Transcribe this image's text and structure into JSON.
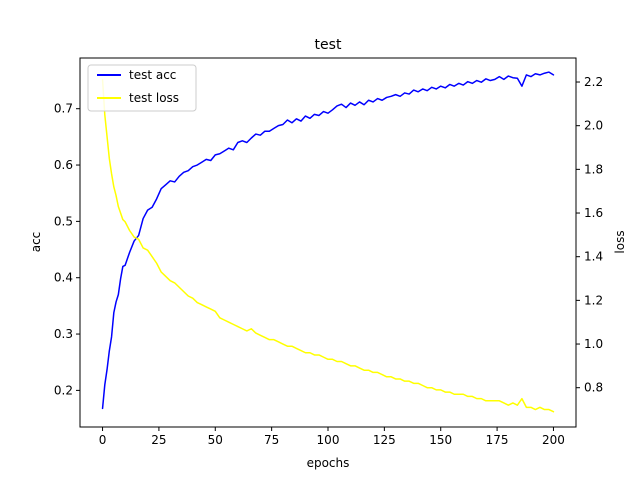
{
  "chart_data": {
    "type": "line",
    "title": "test",
    "xlabel": "epochs",
    "ylabel_left": "acc",
    "ylabel_right": "loss",
    "xlim": [
      -10,
      210
    ],
    "ylim_left": [
      0.135,
      0.79
    ],
    "ylim_right": [
      0.62,
      2.31
    ],
    "x_ticks": [
      0,
      25,
      50,
      75,
      100,
      125,
      150,
      175,
      200
    ],
    "y_ticks_left": [
      0.2,
      0.3,
      0.4,
      0.5,
      0.6,
      0.7
    ],
    "y_ticks_right": [
      0.8,
      1.0,
      1.2,
      1.4,
      1.6,
      1.8,
      2.0,
      2.2
    ],
    "legend_position": "upper-left",
    "grid": false,
    "series": [
      {
        "name": "test acc",
        "axis": "left",
        "color": "#0000ff",
        "x": [
          0,
          1,
          2,
          3,
          4,
          5,
          6,
          7,
          8,
          9,
          10,
          12,
          14,
          16,
          18,
          20,
          22,
          24,
          26,
          28,
          30,
          32,
          34,
          36,
          38,
          40,
          42,
          44,
          46,
          48,
          50,
          52,
          54,
          56,
          58,
          60,
          62,
          64,
          66,
          68,
          70,
          72,
          74,
          76,
          78,
          80,
          82,
          84,
          86,
          88,
          90,
          92,
          94,
          96,
          98,
          100,
          102,
          104,
          106,
          108,
          110,
          112,
          114,
          116,
          118,
          120,
          122,
          124,
          126,
          128,
          130,
          132,
          134,
          136,
          138,
          140,
          142,
          144,
          146,
          148,
          150,
          152,
          154,
          156,
          158,
          160,
          162,
          164,
          166,
          168,
          170,
          172,
          174,
          176,
          178,
          180,
          182,
          184,
          186,
          188,
          190,
          192,
          194,
          196,
          198,
          200
        ],
        "y": [
          0.168,
          0.21,
          0.237,
          0.27,
          0.295,
          0.338,
          0.357,
          0.37,
          0.398,
          0.42,
          0.422,
          0.445,
          0.465,
          0.475,
          0.505,
          0.52,
          0.525,
          0.54,
          0.558,
          0.565,
          0.572,
          0.57,
          0.58,
          0.587,
          0.59,
          0.597,
          0.6,
          0.605,
          0.61,
          0.608,
          0.618,
          0.62,
          0.625,
          0.63,
          0.627,
          0.64,
          0.643,
          0.64,
          0.648,
          0.655,
          0.653,
          0.66,
          0.66,
          0.665,
          0.67,
          0.672,
          0.68,
          0.675,
          0.682,
          0.678,
          0.687,
          0.683,
          0.69,
          0.688,
          0.695,
          0.692,
          0.698,
          0.705,
          0.708,
          0.702,
          0.71,
          0.706,
          0.712,
          0.707,
          0.715,
          0.712,
          0.718,
          0.715,
          0.72,
          0.722,
          0.725,
          0.722,
          0.728,
          0.726,
          0.733,
          0.73,
          0.735,
          0.732,
          0.738,
          0.735,
          0.74,
          0.737,
          0.743,
          0.74,
          0.745,
          0.742,
          0.748,
          0.745,
          0.75,
          0.747,
          0.753,
          0.75,
          0.752,
          0.757,
          0.752,
          0.758,
          0.755,
          0.754,
          0.74,
          0.76,
          0.757,
          0.762,
          0.76,
          0.763,
          0.765,
          0.76
        ]
      },
      {
        "name": "test loss",
        "axis": "right",
        "color": "#ffff00",
        "x": [
          0,
          1,
          2,
          3,
          4,
          5,
          6,
          7,
          8,
          9,
          10,
          12,
          14,
          16,
          18,
          20,
          22,
          24,
          26,
          28,
          30,
          32,
          34,
          36,
          38,
          40,
          42,
          44,
          46,
          48,
          50,
          52,
          54,
          56,
          58,
          60,
          62,
          64,
          66,
          68,
          70,
          72,
          74,
          76,
          78,
          80,
          82,
          84,
          86,
          88,
          90,
          92,
          94,
          96,
          98,
          100,
          102,
          104,
          106,
          108,
          110,
          112,
          114,
          116,
          118,
          120,
          122,
          124,
          126,
          128,
          130,
          132,
          134,
          136,
          138,
          140,
          142,
          144,
          146,
          148,
          150,
          152,
          154,
          156,
          158,
          160,
          162,
          164,
          166,
          168,
          170,
          172,
          174,
          176,
          178,
          180,
          182,
          184,
          186,
          188,
          190,
          192,
          194,
          196,
          198,
          200
        ],
        "y": [
          2.21,
          2.05,
          1.95,
          1.85,
          1.78,
          1.72,
          1.68,
          1.63,
          1.6,
          1.57,
          1.56,
          1.52,
          1.49,
          1.48,
          1.44,
          1.43,
          1.4,
          1.37,
          1.33,
          1.31,
          1.29,
          1.28,
          1.26,
          1.24,
          1.22,
          1.21,
          1.19,
          1.18,
          1.17,
          1.16,
          1.15,
          1.12,
          1.11,
          1.1,
          1.09,
          1.08,
          1.07,
          1.06,
          1.07,
          1.05,
          1.04,
          1.03,
          1.02,
          1.02,
          1.01,
          1.0,
          0.99,
          0.99,
          0.98,
          0.97,
          0.96,
          0.96,
          0.95,
          0.95,
          0.94,
          0.93,
          0.93,
          0.92,
          0.92,
          0.91,
          0.9,
          0.9,
          0.89,
          0.88,
          0.88,
          0.87,
          0.87,
          0.86,
          0.85,
          0.85,
          0.84,
          0.84,
          0.83,
          0.83,
          0.82,
          0.82,
          0.81,
          0.8,
          0.8,
          0.79,
          0.79,
          0.78,
          0.78,
          0.77,
          0.77,
          0.77,
          0.76,
          0.76,
          0.75,
          0.75,
          0.74,
          0.74,
          0.74,
          0.74,
          0.73,
          0.72,
          0.73,
          0.72,
          0.75,
          0.71,
          0.71,
          0.7,
          0.71,
          0.7,
          0.7,
          0.69
        ]
      }
    ]
  }
}
